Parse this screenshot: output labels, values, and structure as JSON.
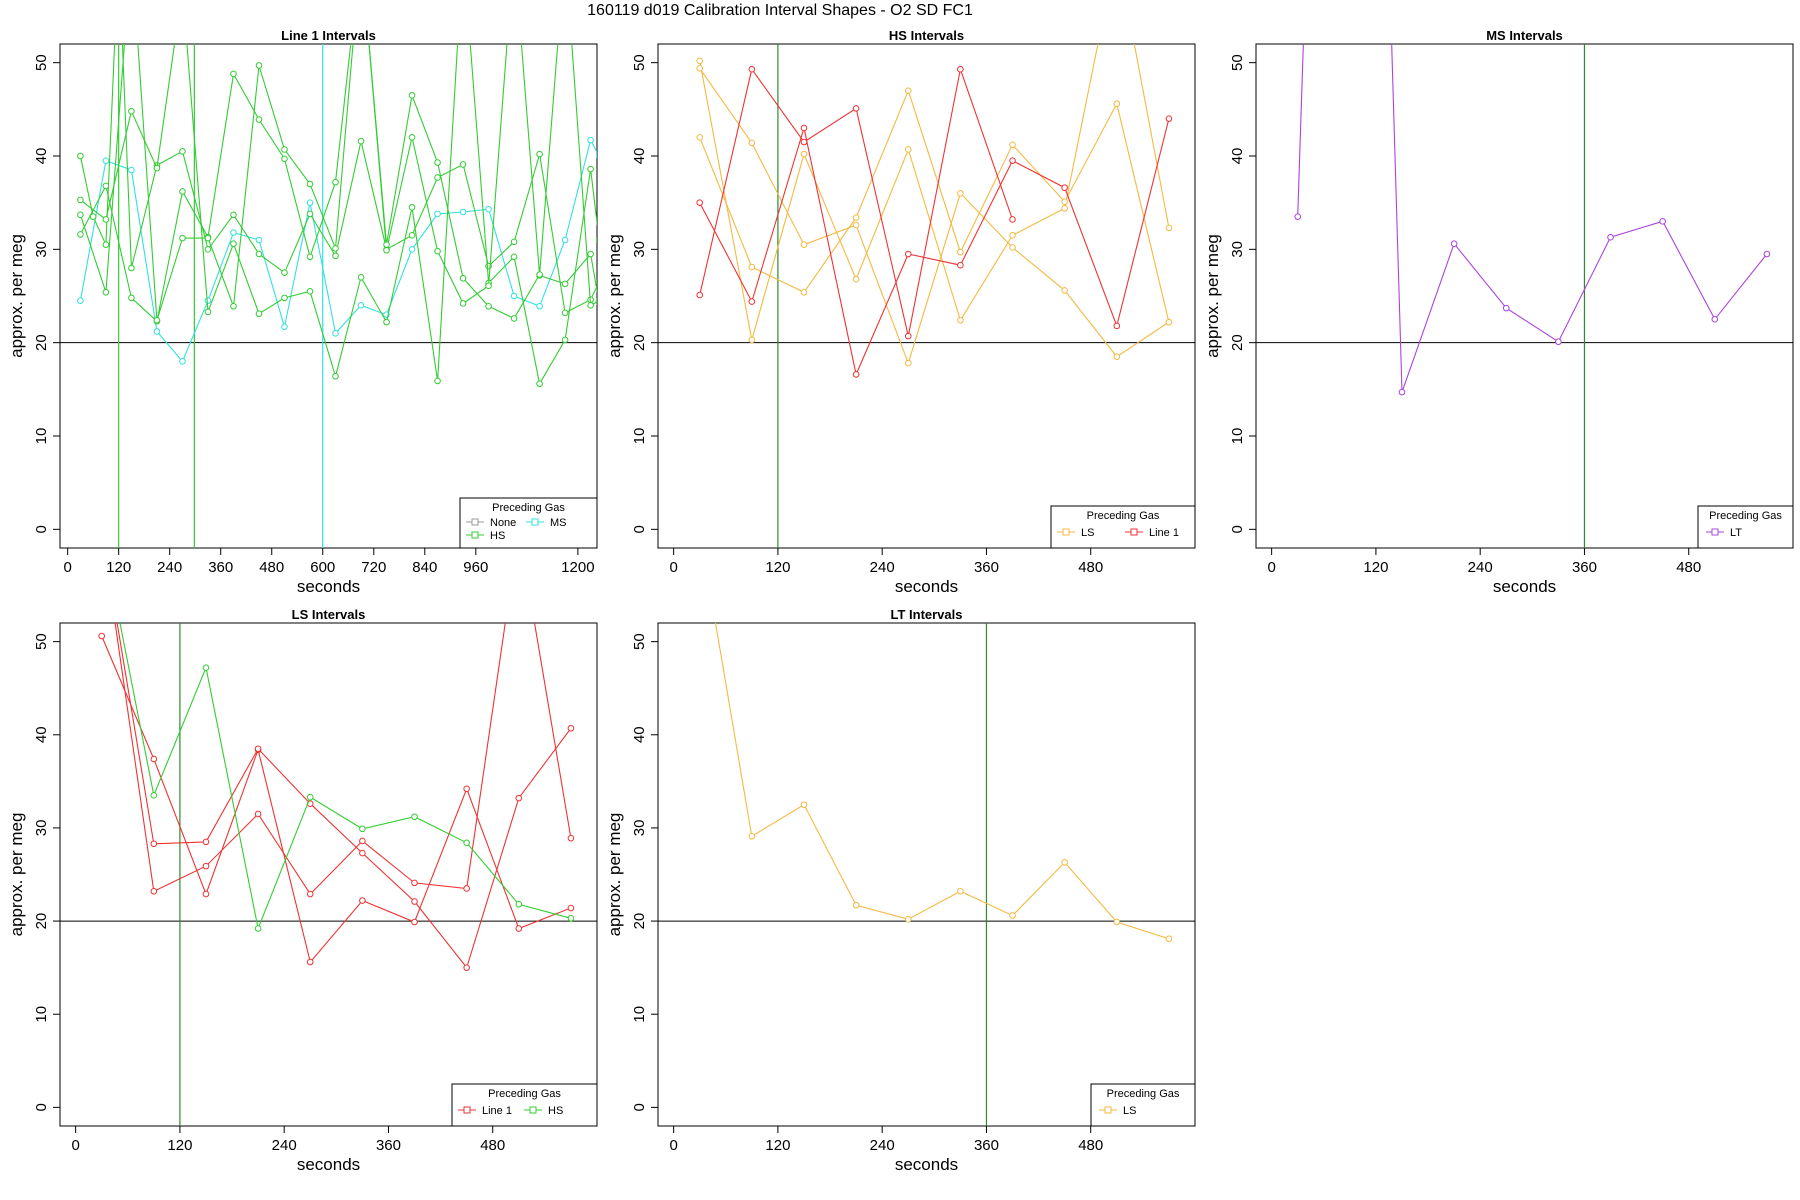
{
  "title": "160119   d019   Calibration Interval Shapes - O2 SD FC1",
  "colors": {
    "None": "#999999",
    "HS": "#33cc33",
    "MS": "#33e0e0",
    "LS": "#f4b942",
    "Line 1": "#ee3333",
    "LT": "#aa44dd",
    "refline": "#000000",
    "vline": "#2e8b2e"
  },
  "chart_data": [
    {
      "id": "line1",
      "type": "line",
      "title": "Line 1 Intervals",
      "xlabel": "seconds",
      "ylabel": "approx. per meg",
      "xlim": [
        -18,
        1245
      ],
      "ylim": [
        -2,
        52
      ],
      "xticks": [
        0,
        120,
        240,
        360,
        480,
        600,
        720,
        840,
        960,
        1200
      ],
      "yticks": [
        0,
        10,
        20,
        30,
        40,
        50
      ],
      "hline": 20,
      "vlines": [
        {
          "x": 120,
          "color": "HS"
        },
        {
          "x": 298,
          "color": "HS"
        },
        {
          "x": 600,
          "color": "MS"
        }
      ],
      "legend": {
        "title": "Preceding Gas",
        "entries": [
          "None",
          "MS",
          "HS"
        ],
        "position": "bottom-right"
      },
      "series": [
        {
          "name": "MS",
          "color": "MS",
          "x": [
            30,
            90,
            150,
            210,
            270,
            330,
            390,
            450,
            510,
            570,
            630,
            690,
            750,
            810,
            870,
            930,
            990,
            1050,
            1110,
            1170,
            1230,
            1250
          ],
          "y": [
            24.5,
            39.5,
            38.5,
            21.2,
            18.0,
            24.5,
            31.8,
            31.0,
            21.7,
            35.0,
            21.0,
            24.0,
            23.0,
            30.0,
            33.8,
            34.0,
            34.3,
            25.0,
            23.9,
            31.0,
            41.7,
            40.0
          ]
        },
        {
          "name": "HS",
          "color": "HS",
          "x": [
            30,
            60,
            90,
            120,
            150,
            210,
            270,
            330,
            390,
            450,
            510,
            570,
            630,
            690,
            750,
            810,
            870,
            930,
            990,
            1050,
            1110,
            1170,
            1230,
            1250
          ],
          "y": [
            40.0,
            33.5,
            30.5,
            62.0,
            28.0,
            39.0,
            40.5,
            30.0,
            33.7,
            29.5,
            27.5,
            33.8,
            29.3,
            41.6,
            30.0,
            31.5,
            37.7,
            39.1,
            28.2,
            30.8,
            40.2,
            23.2,
            24.6,
            26.5
          ]
        },
        {
          "name": "HS",
          "color": "HS",
          "x": [
            30,
            90,
            150,
            210,
            270,
            330,
            390,
            450,
            510,
            570,
            630,
            690,
            750,
            810,
            870,
            930,
            990,
            1050,
            1110,
            1170,
            1230,
            1250
          ],
          "y": [
            35.3,
            33.2,
            44.8,
            38.7,
            58.0,
            23.3,
            30.6,
            23.1,
            24.8,
            25.5,
            16.4,
            27.0,
            22.2,
            34.5,
            15.9,
            62.0,
            26.4,
            29.2,
            15.6,
            20.3,
            38.6,
            31.0
          ]
        },
        {
          "name": "HS",
          "color": "HS",
          "x": [
            30,
            90,
            150,
            210,
            270,
            330,
            390,
            450,
            510,
            570,
            630,
            690,
            750,
            810,
            870,
            930,
            990,
            1050,
            1110,
            1170,
            1230,
            1250
          ],
          "y": [
            31.6,
            36.8,
            24.8,
            22.3,
            36.2,
            31.3,
            48.8,
            43.9,
            39.7,
            29.2,
            37.2,
            62.0,
            29.9,
            42.0,
            29.8,
            24.2,
            26.1,
            62.0,
            27.2,
            26.3,
            29.5,
            24.3
          ]
        },
        {
          "name": "HS",
          "color": "HS",
          "x": [
            30,
            90,
            150,
            210,
            270,
            330,
            390,
            450,
            510,
            570,
            630,
            690,
            750,
            810,
            870,
            930,
            990,
            1050,
            1110,
            1170,
            1230,
            1250
          ],
          "y": [
            33.7,
            25.4,
            62.0,
            22.4,
            31.2,
            31.2,
            23.9,
            49.7,
            40.7,
            37.0,
            30.1,
            62.0,
            30.5,
            46.5,
            39.3,
            26.9,
            23.9,
            22.6,
            27.3,
            62.0,
            24.0,
            24.5
          ]
        }
      ]
    },
    {
      "id": "hs",
      "type": "line",
      "title": "HS Intervals",
      "xlabel": "seconds",
      "ylabel": "approx. per meg",
      "xlim": [
        -18,
        600
      ],
      "ylim": [
        -2,
        52
      ],
      "xticks": [
        0,
        120,
        240,
        360,
        480
      ],
      "yticks": [
        0,
        10,
        20,
        30,
        40,
        50
      ],
      "hline": 20,
      "vlines": [
        {
          "x": 120,
          "color": "vline"
        }
      ],
      "legend": {
        "title": "Preceding Gas",
        "entries": [
          "LS",
          "Line 1"
        ],
        "position": "bottom-right"
      },
      "series": [
        {
          "name": "LS",
          "color": "LS",
          "x": [
            30,
            90,
            150,
            210,
            270,
            330,
            390,
            450,
            510,
            570
          ],
          "y": [
            50.2,
            20.3,
            40.2,
            26.8,
            40.7,
            22.4,
            31.5,
            34.4,
            62.0,
            32.3
          ]
        },
        {
          "name": "LS",
          "color": "LS",
          "x": [
            30,
            90,
            150,
            210,
            270,
            330,
            390,
            450,
            510,
            570
          ],
          "y": [
            49.4,
            41.4,
            30.5,
            32.6,
            17.8,
            36.0,
            30.2,
            25.6,
            18.5,
            22.2
          ]
        },
        {
          "name": "LS",
          "color": "LS",
          "x": [
            30,
            90,
            150,
            210,
            270,
            330,
            390,
            450,
            510,
            570
          ],
          "y": [
            42.0,
            28.1,
            25.4,
            33.4,
            47.0,
            29.7,
            41.2,
            35.1,
            45.6,
            22.2
          ]
        },
        {
          "name": "Line 1",
          "color": "Line 1",
          "x": [
            30,
            90,
            150,
            210,
            270,
            330,
            390,
            450,
            510,
            570
          ],
          "y": [
            35.0,
            24.4,
            43.0,
            16.6,
            29.5,
            28.3,
            39.5,
            36.6,
            21.8,
            44.0
          ]
        },
        {
          "name": "Line 1",
          "color": "Line 1",
          "x": [
            30,
            90,
            150,
            210,
            270,
            330,
            390
          ],
          "y": [
            25.1,
            49.3,
            41.5,
            45.1,
            20.7,
            49.3,
            33.2
          ]
        }
      ]
    },
    {
      "id": "ms",
      "type": "line",
      "title": "MS Intervals",
      "xlabel": "seconds",
      "ylabel": "approx. per meg",
      "xlim": [
        -18,
        600
      ],
      "ylim": [
        -2,
        52
      ],
      "xticks": [
        0,
        120,
        240,
        360,
        480
      ],
      "yticks": [
        0,
        10,
        20,
        30,
        40,
        50
      ],
      "hline": 20,
      "vlines": [
        {
          "x": 360,
          "color": "vline"
        }
      ],
      "legend": {
        "title": "Preceding Gas",
        "entries": [
          "LT"
        ],
        "position": "bottom-right"
      },
      "series": [
        {
          "name": "LT",
          "color": "LT",
          "x": [
            30,
            40,
            135,
            150,
            210,
            270,
            330,
            390,
            450,
            510,
            570
          ],
          "y": [
            33.5,
            62.0,
            62.0,
            14.7,
            30.6,
            23.7,
            20.1,
            31.3,
            33.0,
            22.5,
            29.5
          ]
        }
      ]
    },
    {
      "id": "ls",
      "type": "line",
      "title": "LS Intervals",
      "xlabel": "seconds",
      "ylabel": "approx. per meg",
      "xlim": [
        -18,
        600
      ],
      "ylim": [
        -2,
        52
      ],
      "xticks": [
        0,
        120,
        240,
        360,
        480
      ],
      "yticks": [
        0,
        10,
        20,
        30,
        40,
        50
      ],
      "hline": 20,
      "vlines": [
        {
          "x": 120,
          "color": "vline"
        }
      ],
      "legend": {
        "title": "Preceding Gas",
        "entries": [
          "Line 1",
          "HS"
        ],
        "position": "bottom-right"
      },
      "series": [
        {
          "name": "Line 1",
          "color": "Line 1",
          "x": [
            30,
            90,
            150,
            210,
            270,
            330,
            390,
            450,
            510,
            570
          ],
          "y": [
            50.6,
            37.4,
            22.9,
            38.4,
            15.6,
            22.2,
            19.9,
            34.2,
            19.2,
            21.4
          ]
        },
        {
          "name": "Line 1",
          "color": "Line 1",
          "x": [
            30,
            90,
            150,
            210,
            270,
            330,
            390,
            450,
            510,
            570
          ],
          "y": [
            62.0,
            28.3,
            28.5,
            38.5,
            32.6,
            27.3,
            22.1,
            15.0,
            33.2,
            40.7
          ]
        },
        {
          "name": "Line 1",
          "color": "Line 1",
          "x": [
            30,
            90,
            150,
            210,
            270,
            330,
            390,
            450,
            510,
            570
          ],
          "y": [
            62.0,
            23.2,
            25.9,
            31.5,
            22.9,
            28.6,
            24.1,
            23.5,
            62.0,
            28.9
          ]
        },
        {
          "name": "HS",
          "color": "HS",
          "x": [
            30,
            90,
            150,
            210,
            270,
            330,
            390,
            450,
            510,
            570
          ],
          "y": [
            62.0,
            33.5,
            47.2,
            19.2,
            33.3,
            29.9,
            31.2,
            28.4,
            21.8,
            20.3
          ]
        }
      ]
    },
    {
      "id": "lt",
      "type": "line",
      "title": "LT Intervals",
      "xlabel": "seconds",
      "ylabel": "approx. per meg",
      "xlim": [
        -18,
        600
      ],
      "ylim": [
        -2,
        52
      ],
      "xticks": [
        0,
        120,
        240,
        360,
        480
      ],
      "yticks": [
        0,
        10,
        20,
        30,
        40,
        50
      ],
      "hline": 20,
      "vlines": [
        {
          "x": 360,
          "color": "vline"
        }
      ],
      "legend": {
        "title": "Preceding Gas",
        "entries": [
          "LS"
        ],
        "position": "bottom-right"
      },
      "series": [
        {
          "name": "LS",
          "color": "LS",
          "x": [
            30,
            90,
            150,
            210,
            270,
            330,
            390,
            450,
            510,
            570
          ],
          "y": [
            62.0,
            29.1,
            32.5,
            21.7,
            20.2,
            23.2,
            20.6,
            26.3,
            19.9,
            18.1
          ]
        }
      ]
    }
  ]
}
